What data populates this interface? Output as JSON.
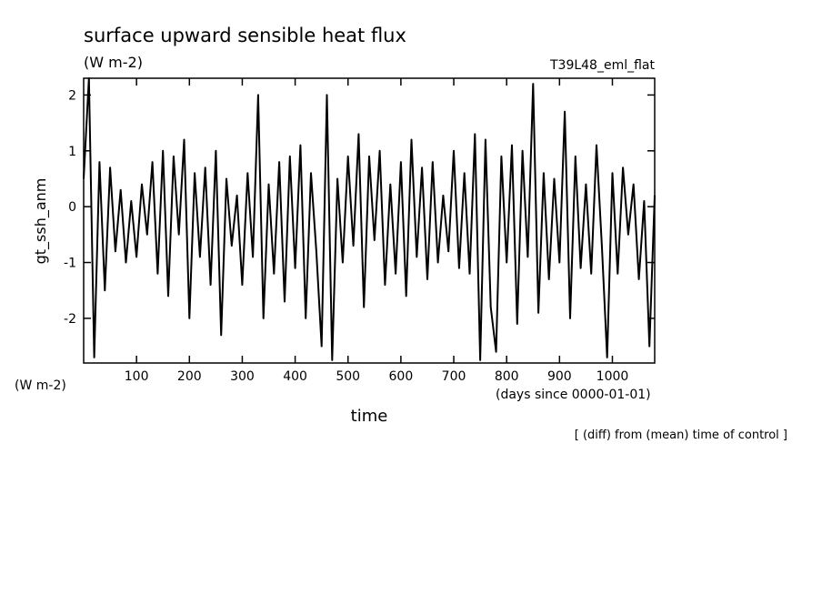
{
  "chart_data": {
    "type": "line",
    "title": "surface upward sensible heat flux",
    "units_top": "(W m-2)",
    "experiment": "T39L48_eml_flat",
    "y_label": "gt_ssh_anm",
    "units_left": "(W m-2)",
    "x_units": "(days since 0000-01-01)",
    "x_label": "time",
    "footnote": "[ (diff) from (mean) time of control ]",
    "color": "#000000",
    "xlim": [
      0,
      1080
    ],
    "ylim": [
      -2.8,
      2.3
    ],
    "xticks": [
      100,
      200,
      300,
      400,
      500,
      600,
      700,
      800,
      900,
      1000
    ],
    "yticks": [
      -2,
      -1,
      0,
      1,
      2
    ],
    "x": [
      0,
      10,
      20,
      30,
      40,
      50,
      60,
      70,
      80,
      90,
      100,
      110,
      120,
      130,
      140,
      150,
      160,
      170,
      180,
      190,
      200,
      210,
      220,
      230,
      240,
      250,
      260,
      270,
      280,
      290,
      300,
      310,
      320,
      330,
      340,
      350,
      360,
      370,
      380,
      390,
      400,
      410,
      420,
      430,
      440,
      450,
      460,
      470,
      480,
      490,
      500,
      510,
      520,
      530,
      540,
      550,
      560,
      570,
      580,
      590,
      600,
      610,
      620,
      630,
      640,
      650,
      660,
      670,
      680,
      690,
      700,
      710,
      720,
      730,
      740,
      750,
      760,
      770,
      780,
      790,
      800,
      810,
      820,
      830,
      840,
      850,
      860,
      870,
      880,
      890,
      900,
      910,
      920,
      930,
      940,
      950,
      960,
      970,
      980,
      990,
      1000,
      1010,
      1020,
      1030,
      1040,
      1050,
      1060,
      1070,
      1080
    ],
    "values": [
      0.5,
      2.3,
      -2.7,
      0.8,
      -1.5,
      0.7,
      -0.8,
      0.3,
      -1.0,
      0.1,
      -0.9,
      0.4,
      -0.5,
      0.8,
      -1.2,
      1.0,
      -1.6,
      0.9,
      -0.5,
      1.2,
      -2.0,
      0.6,
      -0.9,
      0.7,
      -1.4,
      1.0,
      -2.3,
      0.5,
      -0.7,
      0.2,
      -1.4,
      0.6,
      -0.9,
      2.0,
      -2.0,
      0.4,
      -1.2,
      0.8,
      -1.7,
      0.9,
      -1.1,
      1.1,
      -2.0,
      0.6,
      -0.8,
      -2.5,
      2.0,
      -2.75,
      0.5,
      -1.0,
      0.9,
      -0.7,
      1.3,
      -1.8,
      0.9,
      -0.6,
      1.0,
      -1.4,
      0.4,
      -1.2,
      0.8,
      -1.6,
      1.2,
      -0.9,
      0.7,
      -1.3,
      0.8,
      -1.0,
      0.2,
      -0.8,
      1.0,
      -1.1,
      0.6,
      -1.2,
      1.3,
      -2.75,
      1.2,
      -1.8,
      -2.6,
      0.9,
      -1.0,
      1.1,
      -2.1,
      1.0,
      -0.9,
      2.2,
      -1.9,
      0.6,
      -1.3,
      0.5,
      -1.0,
      1.7,
      -2.0,
      0.9,
      -1.1,
      0.4,
      -1.2,
      1.1,
      -0.7,
      -2.7,
      0.6,
      -1.2,
      0.7,
      -0.5,
      0.4,
      -1.3,
      0.1,
      -2.5,
      0.2
    ]
  }
}
